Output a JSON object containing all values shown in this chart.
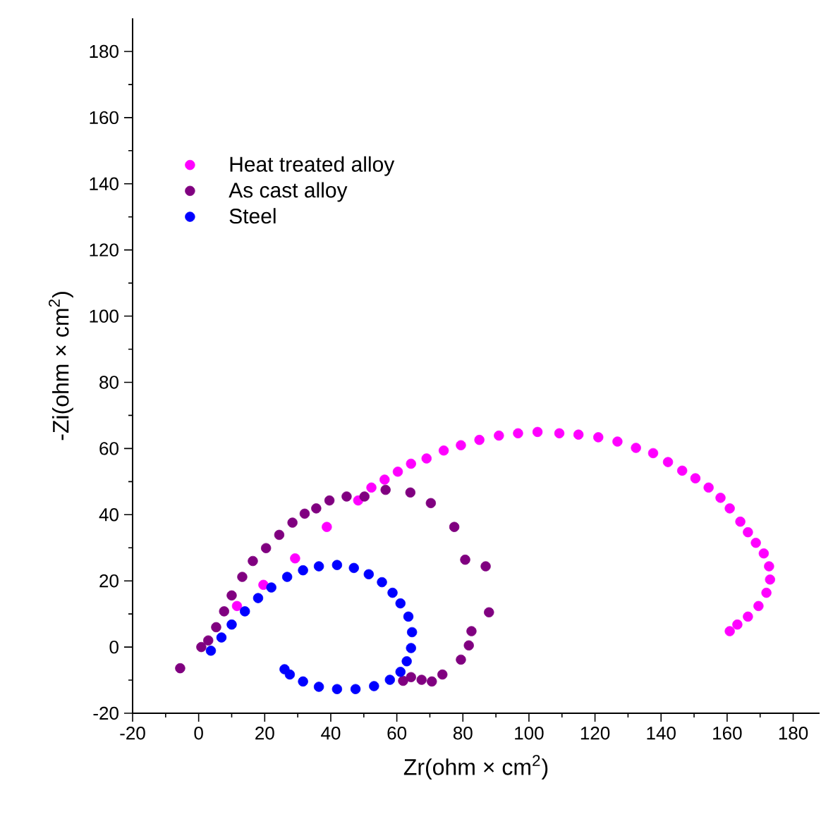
{
  "chart_data": {
    "type": "scatter",
    "xlabel": "Zr(ohm × cm$^{2}$)",
    "ylabel": "-Zi(ohm × cm$^{2}$)",
    "xlim": [
      -20,
      188
    ],
    "ylim": [
      -20,
      190
    ],
    "xticks": [
      -20,
      0,
      20,
      40,
      60,
      80,
      100,
      120,
      140,
      160,
      180
    ],
    "yticks": [
      -20,
      0,
      20,
      40,
      60,
      80,
      100,
      120,
      140,
      160,
      180
    ],
    "grid": false,
    "legend": "top left",
    "marker": "circle",
    "series": [
      {
        "name": "Heat treated alloy",
        "color": "#ff00ff",
        "x": [
          11.6,
          19.6,
          29.2,
          38.8,
          48.3,
          52.3,
          56.3,
          60.3,
          64.3,
          69,
          74.2,
          79.4,
          85,
          90.9,
          96.7,
          102.6,
          109.2,
          115,
          121,
          126.8,
          132.4,
          137.6,
          142.1,
          146.4,
          150.4,
          154.4,
          158,
          160.8,
          164,
          166.3,
          168.7,
          171.1,
          172.7,
          173,
          171.9,
          169.5,
          166.3,
          163.1,
          160.8
        ],
        "values": [
          12.4,
          18.8,
          26.8,
          36.3,
          44.3,
          48.2,
          50.6,
          53,
          55.4,
          57,
          59.4,
          61,
          62.6,
          63.9,
          64.6,
          65,
          64.6,
          64.2,
          63.4,
          62.1,
          60.2,
          58.6,
          55.9,
          53.3,
          51,
          48.2,
          45.1,
          41.9,
          37.9,
          34.7,
          31.5,
          28.3,
          24.4,
          20.4,
          16.4,
          12.4,
          9.2,
          6.8,
          4.8
        ]
      },
      {
        "name": "As cast alloy",
        "color": "#800080",
        "x": [
          -5.6,
          0.8,
          2.9,
          5.3,
          7.7,
          10,
          13.2,
          16.4,
          20.4,
          24.4,
          28.4,
          32.1,
          35.6,
          39.6,
          44.8,
          50.2,
          56.6,
          64.1,
          70.3,
          77.4,
          80.7,
          86.9,
          87.9,
          82.6,
          81.8,
          79.4,
          73.8,
          70.6,
          67.5,
          64.3,
          61.9
        ],
        "values": [
          -6.4,
          0,
          2,
          6,
          10.8,
          15.6,
          21.2,
          26,
          29.9,
          33.9,
          37.6,
          40.3,
          41.9,
          44.3,
          45.5,
          45.5,
          47.5,
          46.7,
          43.5,
          36.3,
          26.4,
          24.4,
          10.5,
          4.8,
          0.5,
          -3.8,
          -8.3,
          -10.4,
          -9.9,
          -9.1,
          -10.2
        ]
      },
      {
        "name": "Steel",
        "color": "#0000ff",
        "x": [
          3.7,
          6.9,
          10,
          14,
          18,
          22,
          26.8,
          31.6,
          36.4,
          41.9,
          47,
          51.5,
          55.5,
          58.7,
          61.1,
          63.5,
          64.6,
          64.3,
          63,
          61.1,
          57.9,
          53.1,
          47.5,
          41.9,
          36.4,
          31.6,
          27.6,
          26
        ],
        "values": [
          -1.1,
          2.9,
          6.8,
          10.8,
          14.8,
          18,
          21.2,
          23.2,
          24.4,
          24.8,
          23.9,
          22,
          19.6,
          16.4,
          13.2,
          9.2,
          4.5,
          -0.3,
          -4.3,
          -7.5,
          -9.9,
          -11.8,
          -12.7,
          -12.7,
          -12,
          -10.4,
          -8.3,
          -6.7
        ]
      }
    ]
  }
}
